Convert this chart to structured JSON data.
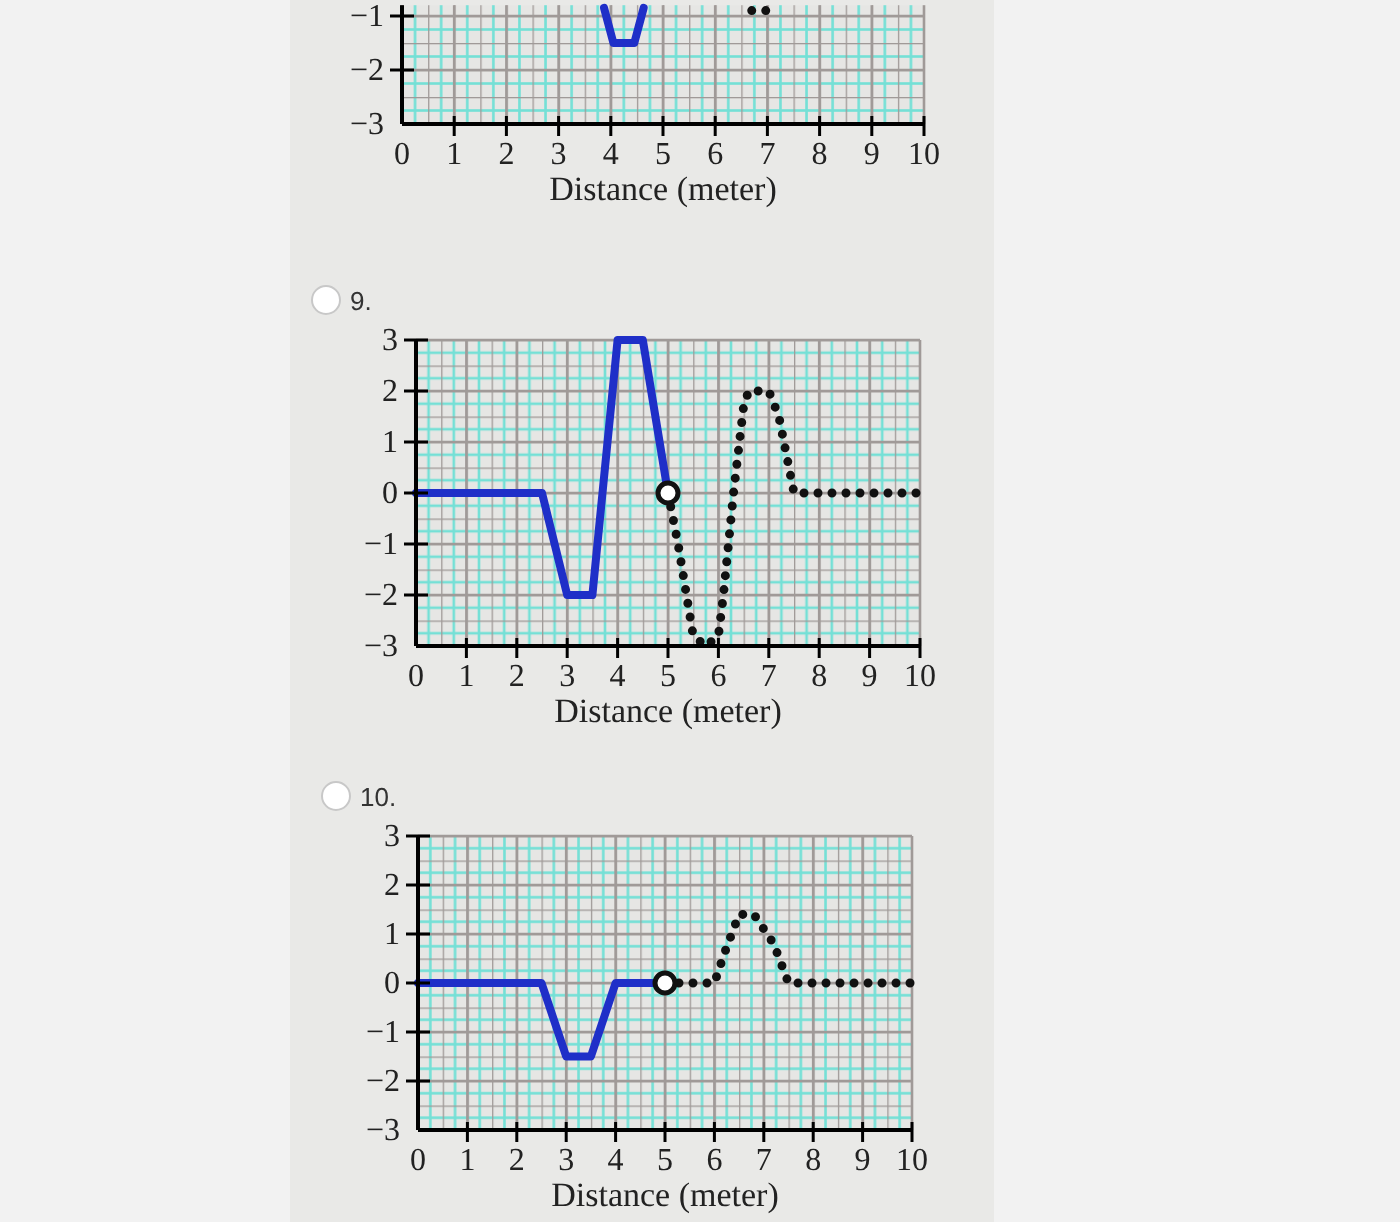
{
  "chart_data": [
    {
      "type": "line",
      "xlabel": "Distance (meter)",
      "xlim": [
        0,
        10
      ],
      "xticks": [
        0,
        1,
        2,
        3,
        4,
        5,
        6,
        7,
        8,
        9,
        10
      ],
      "ylim": [
        -3,
        -0.8
      ],
      "yticks": [
        {
          "value": -1,
          "label": "−1"
        },
        {
          "value": -2,
          "label": "−2"
        },
        {
          "value": -3,
          "label": "−3"
        }
      ],
      "grid": true,
      "series": [
        {
          "color": "#1f2fc8",
          "x": [
            3.87,
            4.05,
            4.45,
            4.63
          ],
          "values": [
            -0.85,
            -1.5,
            -1.5,
            -0.85
          ],
          "line_style": "solid"
        },
        {
          "color": "#111111",
          "x": [
            6.7,
            7
          ],
          "values": [
            -0.9,
            -0.9
          ],
          "line_style": "dotted"
        }
      ]
    },
    {
      "type": "line",
      "title": "9.",
      "xlabel": "Distance (meter)",
      "xlim": [
        0,
        10
      ],
      "xticks": [
        0,
        1,
        2,
        3,
        4,
        5,
        6,
        7,
        8,
        9,
        10
      ],
      "ylim": [
        -3,
        3
      ],
      "yticks": [
        3,
        2,
        1,
        0,
        {
          "value": -1,
          "label": "−1"
        },
        {
          "value": -2,
          "label": "−2"
        },
        {
          "value": -3,
          "label": "−3"
        }
      ],
      "grid": true,
      "series": [
        {
          "color": "#1f2fc8",
          "x": [
            0,
            2.5,
            3,
            3.5,
            4,
            4.5,
            5
          ],
          "values": [
            0,
            0,
            -2,
            -2,
            3,
            3,
            0
          ],
          "line_style": "solid"
        },
        {
          "color": "#111111",
          "x": [
            5,
            5.2,
            5.4,
            5.5,
            5.75,
            6,
            6.1,
            6.3,
            6.5,
            6.6,
            7,
            7.2,
            7.5,
            7.7,
            10
          ],
          "values": [
            0,
            -1,
            -2.2,
            -2.8,
            -3,
            -2.8,
            -2,
            0,
            1.7,
            2,
            2,
            1.5,
            0,
            0,
            0
          ],
          "line_style": "dotted"
        },
        {
          "type": "scatter",
          "color": "#111111",
          "x": [
            5
          ],
          "values": [
            0
          ],
          "marker": "circle"
        }
      ]
    },
    {
      "type": "line",
      "title": "10.",
      "xlabel": "Distance (meter)",
      "xlim": [
        0,
        10
      ],
      "xticks": [
        0,
        1,
        2,
        3,
        4,
        5,
        6,
        7,
        8,
        9,
        10
      ],
      "ylim": [
        -3,
        3
      ],
      "yticks": [
        3,
        2,
        1,
        0,
        {
          "value": -1,
          "label": "−1"
        },
        {
          "value": -2,
          "label": "−2"
        },
        {
          "value": -3,
          "label": "−3"
        }
      ],
      "grid": true,
      "series": [
        {
          "color": "#1f2fc8",
          "x": [
            0,
            2.5,
            3,
            3.5,
            4,
            5
          ],
          "values": [
            0,
            0,
            -1.5,
            -1.5,
            0,
            0
          ],
          "line_style": "solid"
        },
        {
          "color": "#111111",
          "x": [
            5,
            6,
            6.2,
            6.5,
            6.8,
            7.2,
            7.5,
            10
          ],
          "values": [
            0,
            0,
            0.6,
            1.4,
            1.4,
            0.8,
            0,
            0
          ],
          "line_style": "dotted"
        },
        {
          "type": "scatter",
          "color": "#111111",
          "x": [
            5
          ],
          "values": [
            0
          ],
          "marker": "circle"
        }
      ]
    }
  ]
}
